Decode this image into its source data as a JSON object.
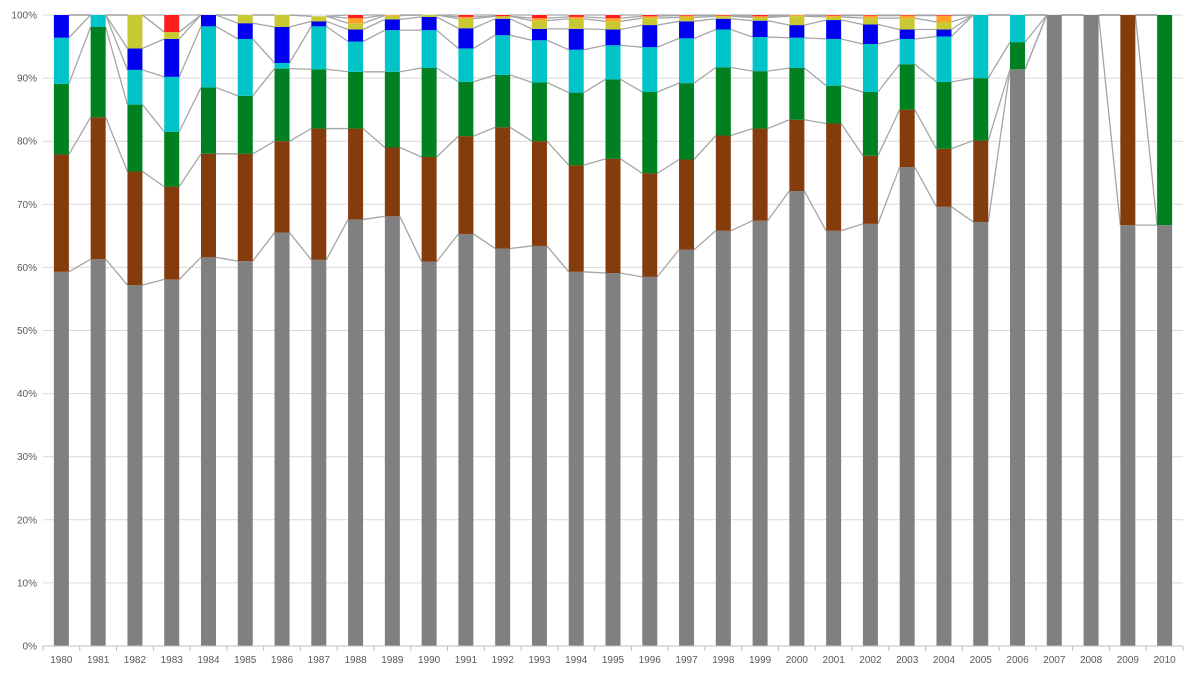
{
  "chart_data": {
    "type": "bar",
    "stacked": true,
    "percent_stacked": true,
    "title": "",
    "xlabel": "",
    "ylabel": "",
    "ylim": [
      0,
      100
    ],
    "yticks": [
      "0%",
      "10%",
      "20%",
      "30%",
      "40%",
      "50%",
      "60%",
      "70%",
      "80%",
      "90%",
      "100%"
    ],
    "grid": true,
    "legend": "none",
    "series_lines": true,
    "categories": [
      "1980",
      "1981",
      "1982",
      "1983",
      "1984",
      "1985",
      "1986",
      "1987",
      "1988",
      "1989",
      "1990",
      "1991",
      "1992",
      "1993",
      "1994",
      "1995",
      "1996",
      "1997",
      "1998",
      "1999",
      "2000",
      "2001",
      "2002",
      "2003",
      "2004",
      "2005",
      "2006",
      "2007",
      "2008",
      "2009",
      "2010"
    ],
    "series": [
      {
        "color": "#808080",
        "values": [
          59.3,
          61.3,
          57.2,
          58.1,
          61.6,
          61.0,
          65.5,
          61.2,
          67.6,
          68.1,
          60.9,
          65.3,
          63.0,
          63.4,
          59.3,
          59.1,
          58.5,
          62.8,
          65.8,
          67.4,
          72.1,
          65.8,
          66.9,
          75.9,
          69.6,
          67.2,
          91.4,
          100,
          100,
          66.7,
          66.7
        ]
      },
      {
        "color": "#843C0C",
        "values": [
          18.6,
          22.5,
          18.0,
          14.7,
          16.4,
          17.0,
          14.5,
          20.8,
          14.4,
          10.9,
          16.6,
          15.5,
          19.2,
          16.6,
          16.9,
          18.1,
          16.4,
          14.3,
          15.1,
          14.6,
          11.3,
          17.0,
          10.8,
          9.1,
          9.2,
          12.9,
          0,
          0,
          0,
          33.3,
          0
        ]
      },
      {
        "color": "#008020",
        "values": [
          11.2,
          14.3,
          10.6,
          8.7,
          10.5,
          9.2,
          11.5,
          9.4,
          9.0,
          12.0,
          14.1,
          8.6,
          8.3,
          9.3,
          11.5,
          12.6,
          12.9,
          12.1,
          10.8,
          9.1,
          8.2,
          6.0,
          10.1,
          7.2,
          10.6,
          9.9,
          4.3,
          0,
          0,
          0,
          33.3
        ]
      },
      {
        "color": "#00C4C8",
        "values": [
          7.3,
          1.9,
          5.5,
          8.7,
          9.7,
          9.0,
          0.9,
          6.8,
          4.8,
          6.6,
          6.0,
          5.3,
          6.3,
          6.7,
          6.8,
          5.4,
          7.1,
          7.1,
          6.0,
          5.4,
          4.8,
          7.4,
          7.6,
          4.0,
          7.2,
          10.0,
          4.3,
          0,
          0,
          0,
          0
        ]
      },
      {
        "color": "#0000F0",
        "values": [
          3.6,
          0,
          3.4,
          6.0,
          1.8,
          2.5,
          5.7,
          0.8,
          1.9,
          1.7,
          2.1,
          3.2,
          2.6,
          1.8,
          3.3,
          2.5,
          3.5,
          2.7,
          1.7,
          2.6,
          2.0,
          3.0,
          3.1,
          1.5,
          1.1,
          0,
          0,
          0,
          0,
          0,
          0
        ]
      },
      {
        "color": "#C8C832",
        "values": [
          0,
          0,
          5.3,
          1.1,
          0,
          1.3,
          1.9,
          0.8,
          1.0,
          0.6,
          0.3,
          1.5,
          0.4,
          1.3,
          1.6,
          1.3,
          1.1,
          0.6,
          0.4,
          0.5,
          1.4,
          0.5,
          1.0,
          1.8,
          1.2,
          0,
          0,
          0,
          0,
          0,
          0
        ]
      },
      {
        "color": "#FFA028",
        "values": [
          0,
          0,
          0,
          0,
          0,
          0,
          0,
          0,
          0.8,
          0.4,
          0,
          0.3,
          0,
          0.4,
          0.3,
          0.5,
          0.3,
          0.3,
          0.1,
          0.2,
          0.2,
          0.2,
          0.4,
          0.4,
          1.0,
          0,
          0,
          0,
          0,
          0,
          0
        ]
      },
      {
        "color": "#FF1E1E",
        "values": [
          0,
          0,
          0,
          2.7,
          0,
          0,
          0,
          0,
          0.5,
          0,
          0,
          0.3,
          0.2,
          0.5,
          0.3,
          0.5,
          0.2,
          0.1,
          0.1,
          0.2,
          0,
          0.1,
          0.1,
          0.1,
          0.1,
          0,
          0,
          0,
          0,
          0,
          0
        ]
      }
    ]
  }
}
